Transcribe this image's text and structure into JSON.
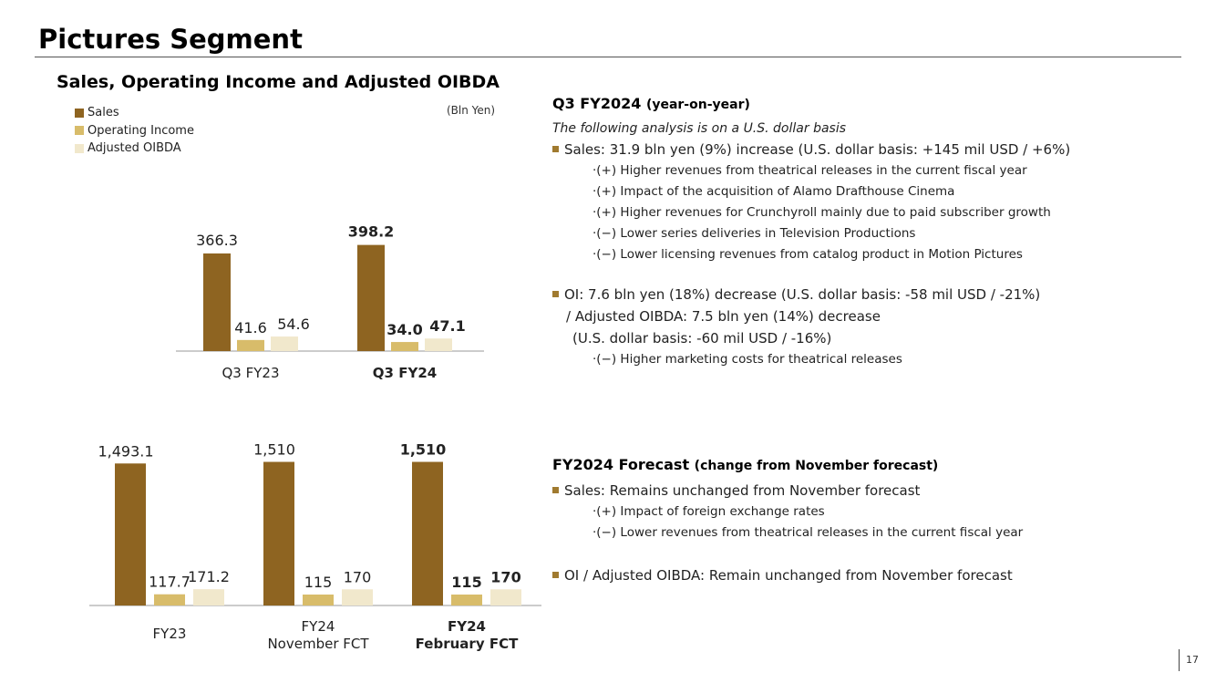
{
  "page": {
    "title": "Pictures Segment",
    "page_number": "17"
  },
  "chart_data": [
    {
      "type": "bar",
      "title": "Sales, Operating Income and Adjusted OIBDA",
      "unit": "(Bln Yen)",
      "legend": [
        "Sales",
        "Operating Income",
        "Adjusted OIBDA"
      ],
      "colors": [
        "#8E6421",
        "#D8BC6A",
        "#F1E8CC"
      ],
      "categories": [
        "Q3 FY23",
        "Q3 FY24"
      ],
      "series": [
        {
          "name": "Sales",
          "values": [
            366.3,
            398.2
          ],
          "labels": [
            "366.3",
            "398.2"
          ]
        },
        {
          "name": "Operating Income",
          "values": [
            41.6,
            34.0
          ],
          "labels": [
            "41.6",
            "34.0"
          ]
        },
        {
          "name": "Adjusted OIBDA",
          "values": [
            54.6,
            47.1
          ],
          "labels": [
            "54.6",
            "47.1"
          ]
        }
      ]
    },
    {
      "type": "bar",
      "categories": [
        "FY23",
        "FY24 November FCT",
        "FY24 February FCT"
      ],
      "category_lines": [
        [
          "FY23"
        ],
        [
          "FY24",
          "November FCT"
        ],
        [
          "FY24",
          "February FCT"
        ]
      ],
      "series": [
        {
          "name": "Sales",
          "values": [
            1493.1,
            1510,
            1510
          ],
          "labels": [
            "1,493.1",
            "1,510",
            "1,510"
          ]
        },
        {
          "name": "Operating Income",
          "values": [
            117.7,
            115,
            115
          ],
          "labels": [
            "117.7",
            "115",
            "115"
          ]
        },
        {
          "name": "Adjusted OIBDA",
          "values": [
            171.2,
            170,
            170
          ],
          "labels": [
            "171.2",
            "170",
            "170"
          ]
        }
      ]
    }
  ],
  "q3": {
    "heading": "Q3 FY2024",
    "heading_sub": "(year-on-year)",
    "note": "The following analysis is on a U.S. dollar basis",
    "sales_bullet": "Sales: 31.9 bln yen (9%) increase (U.S. dollar basis: +145 mil USD / +6%)",
    "sales_details": [
      "·(+) Higher revenues from theatrical releases in the current fiscal year",
      "·(+) Impact of the acquisition of Alamo Drafthouse Cinema",
      "·(+) Higher revenues for Crunchyroll mainly due to paid subscriber growth",
      "·(−) Lower series deliveries in Television Productions",
      "·(−) Lower licensing revenues from catalog product in Motion Pictures"
    ],
    "oi_bullet": "OI: 7.6 bln yen (18%) decrease (U.S. dollar basis: -58 mil USD / -21%)",
    "oi_cont1": "/ Adjusted OIBDA: 7.5 bln yen (14%) decrease",
    "oi_cont2": "(U.S. dollar basis: -60 mil USD / -16%)",
    "oi_details": [
      "·(−) Higher marketing costs for theatrical releases"
    ]
  },
  "fy": {
    "heading": "FY2024 Forecast",
    "heading_sub": "(change from November forecast)",
    "sales_bullet": "Sales: Remains unchanged from November forecast",
    "sales_details": [
      "·(+) Impact of foreign exchange rates",
      "·(−) Lower revenues from theatrical releases in the current fiscal year"
    ],
    "oi_bullet": "OI / Adjusted OIBDA: Remain unchanged from November forecast"
  }
}
